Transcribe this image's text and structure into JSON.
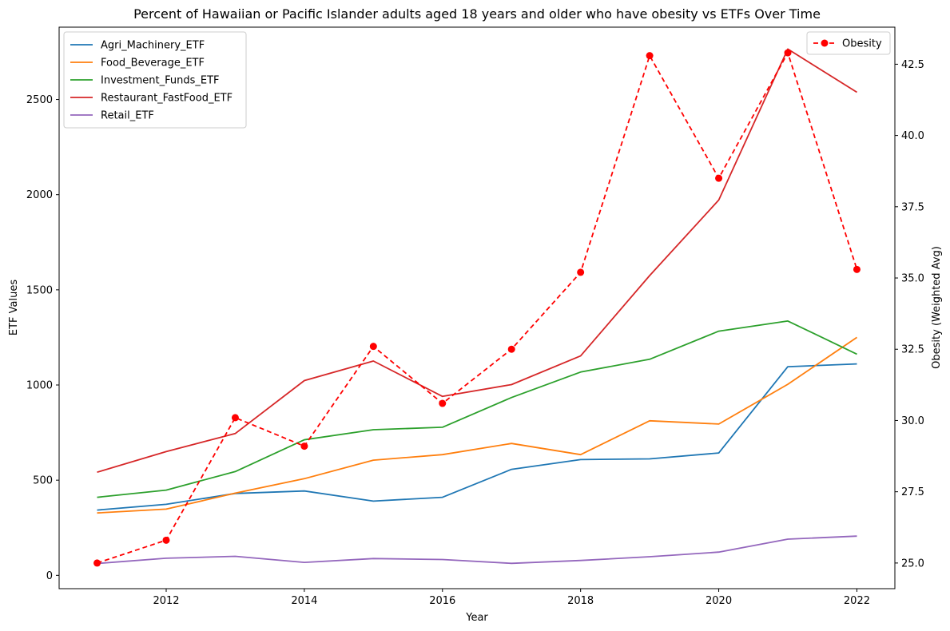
{
  "chart_data": {
    "type": "line",
    "title": "Percent of Hawaiian or Pacific Islander adults aged 18 years and older who have obesity vs ETFs Over Time",
    "xlabel": "Year",
    "ylabel": "ETF Values",
    "y2label": "Obesity (Weighted Avg)",
    "x": [
      2011,
      2012,
      2013,
      2014,
      2015,
      2016,
      2017,
      2018,
      2019,
      2020,
      2021,
      2022
    ],
    "xlim": [
      2010.45,
      2022.55
    ],
    "ylim": [
      -70,
      2880
    ],
    "y2lim": [
      24.1,
      43.8
    ],
    "x_ticks": [
      2012,
      2014,
      2016,
      2018,
      2020,
      2022
    ],
    "y_ticks": [
      0,
      500,
      1000,
      1500,
      2000,
      2500
    ],
    "y2_ticks": [
      25.0,
      27.5,
      30.0,
      32.5,
      35.0,
      37.5,
      40.0,
      42.5
    ],
    "y2_tick_labels": [
      "25.0",
      "27.5",
      "30.0",
      "32.5",
      "35.0",
      "37.5",
      "40.0",
      "42.5"
    ],
    "grid": false,
    "legend_left": "top-left",
    "legend_right": "top-right",
    "series": [
      {
        "name": "Agri_Machinery_ETF",
        "axis": "left",
        "color": "#1f77b4",
        "values": [
          343,
          373,
          430,
          443,
          390,
          410,
          557,
          608,
          612,
          643,
          1096,
          1111
        ]
      },
      {
        "name": "Food_Beverage_ETF",
        "axis": "left",
        "color": "#ff7f0e",
        "values": [
          328,
          348,
          432,
          508,
          605,
          634,
          693,
          634,
          812,
          795,
          1004,
          1250
        ]
      },
      {
        "name": "Investment_Funds_ETF",
        "axis": "left",
        "color": "#2ca02c",
        "values": [
          410,
          448,
          545,
          712,
          765,
          778,
          934,
          1068,
          1135,
          1283,
          1336,
          1162
        ]
      },
      {
        "name": "Restaurant_FastFood_ETF",
        "axis": "left",
        "color": "#d62728",
        "values": [
          542,
          650,
          745,
          1023,
          1126,
          940,
          1002,
          1153,
          1575,
          1972,
          2765,
          2538
        ]
      },
      {
        "name": "Retail_ETF",
        "axis": "left",
        "color": "#9467bd",
        "values": [
          62,
          90,
          100,
          68,
          88,
          83,
          63,
          78,
          98,
          122,
          190,
          206
        ]
      },
      {
        "name": "Obesity",
        "axis": "right",
        "color": "#ff0000",
        "dashed": true,
        "markers": true,
        "values": [
          25.0,
          25.8,
          30.1,
          29.1,
          32.6,
          30.6,
          32.5,
          35.2,
          42.8,
          38.5,
          42.9,
          35.3
        ]
      }
    ]
  }
}
